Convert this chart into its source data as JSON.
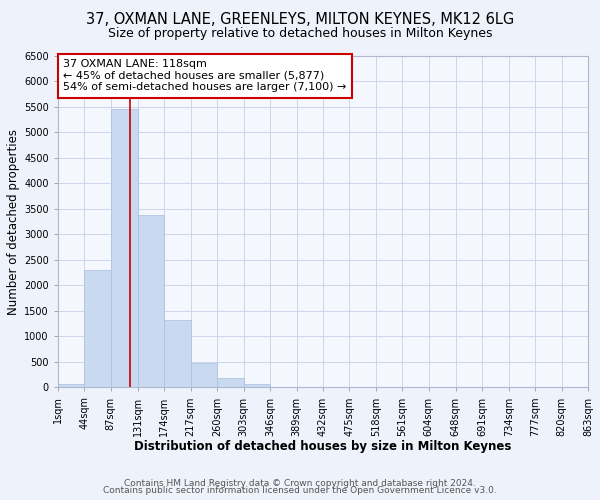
{
  "title": "37, OXMAN LANE, GREENLEYS, MILTON KEYNES, MK12 6LG",
  "subtitle": "Size of property relative to detached houses in Milton Keynes",
  "xlabel": "Distribution of detached houses by size in Milton Keynes",
  "ylabel": "Number of detached properties",
  "bar_color": "#c8d9f0",
  "bar_edgecolor": "#a8c0e0",
  "vline_x": 118,
  "vline_color": "#cc0000",
  "annotation_title": "37 OXMAN LANE: 118sqm",
  "annotation_line1": "← 45% of detached houses are smaller (5,877)",
  "annotation_line2": "54% of semi-detached houses are larger (7,100) →",
  "bin_edges": [
    1,
    44,
    87,
    131,
    174,
    217,
    260,
    303,
    346,
    389,
    432,
    475,
    518,
    561,
    604,
    648,
    691,
    734,
    777,
    820,
    863
  ],
  "bin_heights": [
    75,
    2300,
    5450,
    3380,
    1320,
    480,
    185,
    75,
    0,
    0,
    0,
    0,
    0,
    0,
    0,
    0,
    0,
    0,
    0,
    0
  ],
  "ylim": [
    0,
    6500
  ],
  "yticks": [
    0,
    500,
    1000,
    1500,
    2000,
    2500,
    3000,
    3500,
    4000,
    4500,
    5000,
    5500,
    6000,
    6500
  ],
  "xtick_labels": [
    "1sqm",
    "44sqm",
    "87sqm",
    "131sqm",
    "174sqm",
    "217sqm",
    "260sqm",
    "303sqm",
    "346sqm",
    "389sqm",
    "432sqm",
    "475sqm",
    "518sqm",
    "561sqm",
    "604sqm",
    "648sqm",
    "691sqm",
    "734sqm",
    "777sqm",
    "820sqm",
    "863sqm"
  ],
  "footer1": "Contains HM Land Registry data © Crown copyright and database right 2024.",
  "footer2": "Contains public sector information licensed under the Open Government Licence v3.0.",
  "bg_color": "#eef2fb",
  "plot_bg_color": "#f5f7fe",
  "grid_color": "#c8d0e8",
  "title_fontsize": 10.5,
  "subtitle_fontsize": 9,
  "axis_label_fontsize": 8.5,
  "tick_fontsize": 7,
  "footer_fontsize": 6.5,
  "annotation_box_edgecolor": "#cc0000",
  "annotation_box_facecolor": "#ffffff",
  "annotation_fontsize": 8
}
